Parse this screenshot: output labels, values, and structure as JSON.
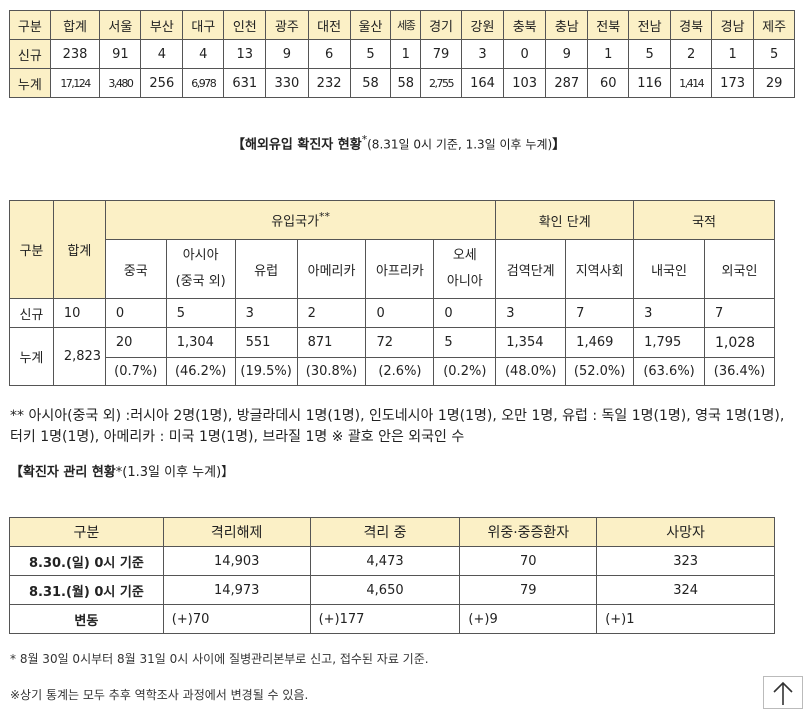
{
  "regional": {
    "headers": [
      "구분",
      "합계",
      "서울",
      "부산",
      "대구",
      "인천",
      "광주",
      "대전",
      "울산",
      "세종",
      "경기",
      "강원",
      "충북",
      "충남",
      "전북",
      "전남",
      "경북",
      "경남",
      "제주"
    ],
    "rows": [
      {
        "label": "신규",
        "values": [
          "238",
          "91",
          "4",
          "4",
          "13",
          "9",
          "6",
          "5",
          "1",
          "79",
          "3",
          "0",
          "9",
          "1",
          "5",
          "2",
          "1",
          "5"
        ]
      },
      {
        "label": "누계",
        "values": [
          "17,124",
          "3,480",
          "256",
          "6,978",
          "631",
          "330",
          "232",
          "58",
          "58",
          "2,755",
          "164",
          "103",
          "287",
          "60",
          "116",
          "1,414",
          "173",
          "29"
        ]
      }
    ]
  },
  "overseas_caption": {
    "title": "【해외유입 확진자 현황",
    "star": "*",
    "sub": "(8.31일 0시 기준, 1.3일 이후 누계)",
    "end": "】"
  },
  "overseas": {
    "h_gubun": "구분",
    "h_total": "합계",
    "h_country": "유입국가",
    "h_country_star": "**",
    "h_stage": "확인 단계",
    "h_nation": "국적",
    "sub": [
      "중국",
      "아시아",
      "(중국 외)",
      "유럽",
      "아메리카",
      "아프리카",
      "오세",
      "아니아",
      "검역단계",
      "지역사회",
      "내국인",
      "외국인"
    ],
    "new": {
      "label": "신규",
      "values": [
        "10",
        "0",
        "5",
        "3",
        "2",
        "0",
        "0",
        "3",
        "7",
        "3",
        "7"
      ]
    },
    "cum": {
      "label": "누계",
      "total": "2,823",
      "values": [
        "20",
        "1,304",
        "551",
        "871",
        "72",
        "5",
        "1,354",
        "1,469",
        "1,795",
        "1,028"
      ],
      "pct": [
        "(0.7%)",
        "(46.2%)",
        "(19.5%)",
        "(30.8%)",
        "(2.6%)",
        "(0.2%)",
        "(48.0%)",
        "(52.0%)",
        "(63.6%)",
        "(36.4%)"
      ]
    }
  },
  "note": "** 아시아(중국 외) :러시아 2명(1명), 방글라데시 1명(1명), 인도네시아 1명(1명), 오만 1명, 유럽 : 독일 1명(1명), 영국 1명(1명), 터키 1명(1명), 아메리카 : 미국 1명(1명), 브라질 1명 ※ 괄호 안은 외국인 수",
  "mgmt_caption": {
    "title": "【확진자 관리 현황",
    "sub": "*(1.3일 이후 누계)】"
  },
  "management": {
    "headers": [
      "구분",
      "격리해제",
      "격리 중",
      "위중·중증환자",
      "사망자"
    ],
    "rows": [
      {
        "label": "8.30.(일) 0시 기준",
        "values": [
          "14,903",
          "4,473",
          "70",
          "323"
        ]
      },
      {
        "label": "8.31.(월) 0시 기준",
        "values": [
          "14,973",
          "4,650",
          "79",
          "324"
        ]
      }
    ],
    "change": {
      "label": "변동",
      "values": [
        "(+)70",
        "(+)177",
        "(+)9",
        "(+)1"
      ]
    }
  },
  "footnotes": [
    "* 8월 30일 0시부터 8월 31일 0시 사이에 질병관리본부로 신고, 접수된 자료 기준.",
    "※상기 통계는 모두 추후 역학조사 과정에서 변경될 수 있음."
  ],
  "icons": {
    "scroll_top": "arrow-up-icon"
  }
}
